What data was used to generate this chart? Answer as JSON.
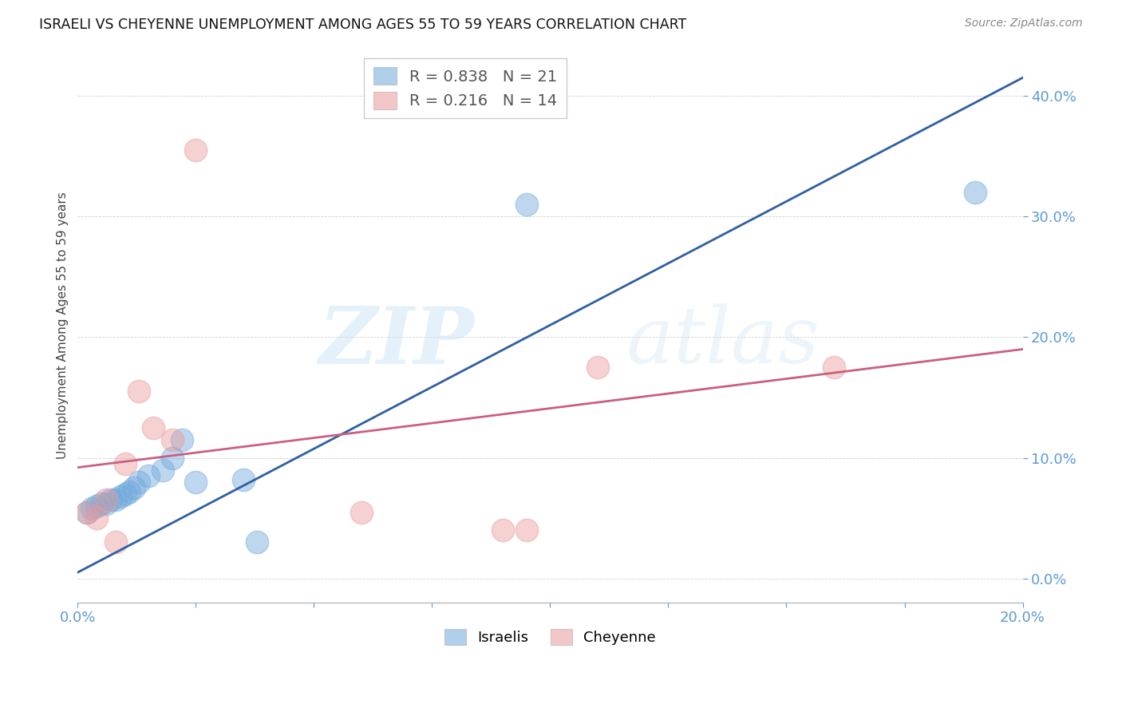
{
  "title": "ISRAELI VS CHEYENNE UNEMPLOYMENT AMONG AGES 55 TO 59 YEARS CORRELATION CHART",
  "source": "Source: ZipAtlas.com",
  "ylabel": "Unemployment Among Ages 55 to 59 years",
  "xlim": [
    0.0,
    0.2
  ],
  "ylim": [
    -0.02,
    0.44
  ],
  "xticks": [
    0.0,
    0.025,
    0.05,
    0.075,
    0.1,
    0.125,
    0.15,
    0.175,
    0.2
  ],
  "xtick_labels_show": [
    true,
    false,
    false,
    false,
    false,
    false,
    false,
    false,
    true
  ],
  "yticks": [
    0.0,
    0.1,
    0.2,
    0.3,
    0.4
  ],
  "legend_label1": "Israelis",
  "legend_label2": "Cheyenne",
  "color_israeli": "#6fa8dc",
  "color_cheyenne": "#ea9999",
  "color_line_israeli": "#2e5fa3",
  "color_line_cheyenne": "#c96080",
  "watermark_zip": "ZIP",
  "watermark_atlas": "atlas",
  "israeli_x": [
    0.002,
    0.003,
    0.004,
    0.005,
    0.006,
    0.007,
    0.008,
    0.009,
    0.01,
    0.011,
    0.012,
    0.013,
    0.015,
    0.018,
    0.02,
    0.022,
    0.025,
    0.035,
    0.038,
    0.095,
    0.19
  ],
  "israeli_y": [
    0.055,
    0.058,
    0.06,
    0.062,
    0.062,
    0.065,
    0.065,
    0.068,
    0.07,
    0.072,
    0.075,
    0.08,
    0.085,
    0.09,
    0.1,
    0.115,
    0.08,
    0.082,
    0.03,
    0.31,
    0.32
  ],
  "cheyenne_x": [
    0.002,
    0.004,
    0.006,
    0.008,
    0.01,
    0.013,
    0.016,
    0.02,
    0.025,
    0.06,
    0.09,
    0.095,
    0.11,
    0.16
  ],
  "cheyenne_y": [
    0.055,
    0.05,
    0.065,
    0.03,
    0.095,
    0.155,
    0.125,
    0.115,
    0.355,
    0.055,
    0.04,
    0.04,
    0.175,
    0.175
  ],
  "israeli_line_x": [
    0.0,
    0.2
  ],
  "israeli_line_y": [
    0.005,
    0.415
  ],
  "cheyenne_line_x": [
    0.0,
    0.2
  ],
  "cheyenne_line_y": [
    0.092,
    0.19
  ]
}
